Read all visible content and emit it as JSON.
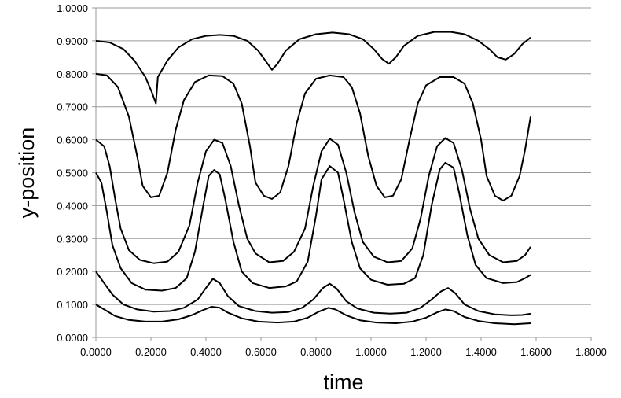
{
  "chart_data": {
    "type": "line",
    "title": "",
    "xlabel": "time",
    "ylabel": "y-position",
    "xlim": [
      0,
      1.8
    ],
    "ylim": [
      0,
      1.0
    ],
    "x_ticks": [
      0,
      0.2,
      0.4,
      0.6,
      0.8,
      1.0,
      1.2,
      1.4,
      1.6,
      1.8
    ],
    "x_tick_labels": [
      "0.0000",
      "0.2000",
      "0.4000",
      "0.6000",
      "0.8000",
      "1.0000",
      "1.2000",
      "1.4000",
      "1.6000",
      "1.8000"
    ],
    "y_ticks": [
      0,
      0.1,
      0.2,
      0.3,
      0.4,
      0.5,
      0.6,
      0.7,
      0.8,
      0.9,
      1.0
    ],
    "y_tick_labels": [
      "0.0000",
      "0.1000",
      "0.2000",
      "0.3000",
      "0.4000",
      "0.5000",
      "0.6000",
      "0.7000",
      "0.8000",
      "0.9000",
      "1.0000"
    ],
    "grid": "horizontal",
    "legend": "none",
    "line_color": "#000000",
    "grid_color": "#9a9a9a",
    "series": [
      {
        "points": [
          [
            0,
            0.9
          ],
          [
            0.05,
            0.895
          ],
          [
            0.1,
            0.875
          ],
          [
            0.14,
            0.84
          ],
          [
            0.18,
            0.79
          ],
          [
            0.205,
            0.74
          ],
          [
            0.218,
            0.71
          ],
          [
            0.225,
            0.79
          ],
          [
            0.26,
            0.84
          ],
          [
            0.3,
            0.88
          ],
          [
            0.35,
            0.905
          ],
          [
            0.4,
            0.915
          ],
          [
            0.45,
            0.918
          ],
          [
            0.5,
            0.915
          ],
          [
            0.55,
            0.9
          ],
          [
            0.59,
            0.87
          ],
          [
            0.62,
            0.835
          ],
          [
            0.64,
            0.812
          ],
          [
            0.66,
            0.83
          ],
          [
            0.69,
            0.87
          ],
          [
            0.74,
            0.905
          ],
          [
            0.8,
            0.92
          ],
          [
            0.86,
            0.925
          ],
          [
            0.92,
            0.92
          ],
          [
            0.97,
            0.905
          ],
          [
            1.01,
            0.875
          ],
          [
            1.04,
            0.845
          ],
          [
            1.065,
            0.83
          ],
          [
            1.09,
            0.85
          ],
          [
            1.12,
            0.885
          ],
          [
            1.17,
            0.915
          ],
          [
            1.23,
            0.927
          ],
          [
            1.29,
            0.927
          ],
          [
            1.34,
            0.92
          ],
          [
            1.39,
            0.9
          ],
          [
            1.43,
            0.875
          ],
          [
            1.46,
            0.85
          ],
          [
            1.49,
            0.843
          ],
          [
            1.52,
            0.86
          ],
          [
            1.55,
            0.89
          ],
          [
            1.58,
            0.91
          ]
        ]
      },
      {
        "points": [
          [
            0,
            0.8
          ],
          [
            0.04,
            0.795
          ],
          [
            0.08,
            0.76
          ],
          [
            0.12,
            0.67
          ],
          [
            0.15,
            0.55
          ],
          [
            0.17,
            0.46
          ],
          [
            0.2,
            0.425
          ],
          [
            0.23,
            0.43
          ],
          [
            0.26,
            0.5
          ],
          [
            0.29,
            0.63
          ],
          [
            0.32,
            0.72
          ],
          [
            0.36,
            0.775
          ],
          [
            0.41,
            0.795
          ],
          [
            0.46,
            0.793
          ],
          [
            0.5,
            0.77
          ],
          [
            0.53,
            0.71
          ],
          [
            0.56,
            0.58
          ],
          [
            0.58,
            0.47
          ],
          [
            0.61,
            0.43
          ],
          [
            0.64,
            0.42
          ],
          [
            0.67,
            0.44
          ],
          [
            0.7,
            0.52
          ],
          [
            0.73,
            0.65
          ],
          [
            0.76,
            0.74
          ],
          [
            0.8,
            0.785
          ],
          [
            0.85,
            0.795
          ],
          [
            0.9,
            0.79
          ],
          [
            0.93,
            0.76
          ],
          [
            0.96,
            0.68
          ],
          [
            0.99,
            0.55
          ],
          [
            1.02,
            0.46
          ],
          [
            1.05,
            0.425
          ],
          [
            1.08,
            0.43
          ],
          [
            1.11,
            0.48
          ],
          [
            1.14,
            0.6
          ],
          [
            1.17,
            0.71
          ],
          [
            1.2,
            0.765
          ],
          [
            1.25,
            0.79
          ],
          [
            1.3,
            0.79
          ],
          [
            1.34,
            0.77
          ],
          [
            1.37,
            0.71
          ],
          [
            1.4,
            0.6
          ],
          [
            1.42,
            0.49
          ],
          [
            1.45,
            0.43
          ],
          [
            1.48,
            0.415
          ],
          [
            1.51,
            0.43
          ],
          [
            1.54,
            0.49
          ],
          [
            1.56,
            0.57
          ],
          [
            1.58,
            0.67
          ]
        ]
      },
      {
        "points": [
          [
            0,
            0.6
          ],
          [
            0.03,
            0.58
          ],
          [
            0.05,
            0.52
          ],
          [
            0.07,
            0.42
          ],
          [
            0.09,
            0.33
          ],
          [
            0.12,
            0.265
          ],
          [
            0.16,
            0.235
          ],
          [
            0.21,
            0.225
          ],
          [
            0.26,
            0.23
          ],
          [
            0.3,
            0.26
          ],
          [
            0.34,
            0.34
          ],
          [
            0.37,
            0.47
          ],
          [
            0.4,
            0.565
          ],
          [
            0.43,
            0.6
          ],
          [
            0.46,
            0.59
          ],
          [
            0.49,
            0.52
          ],
          [
            0.52,
            0.4
          ],
          [
            0.55,
            0.3
          ],
          [
            0.58,
            0.255
          ],
          [
            0.63,
            0.228
          ],
          [
            0.68,
            0.232
          ],
          [
            0.72,
            0.26
          ],
          [
            0.76,
            0.33
          ],
          [
            0.79,
            0.46
          ],
          [
            0.82,
            0.565
          ],
          [
            0.85,
            0.603
          ],
          [
            0.88,
            0.585
          ],
          [
            0.91,
            0.5
          ],
          [
            0.94,
            0.38
          ],
          [
            0.97,
            0.29
          ],
          [
            1.01,
            0.245
          ],
          [
            1.06,
            0.228
          ],
          [
            1.11,
            0.232
          ],
          [
            1.15,
            0.27
          ],
          [
            1.18,
            0.36
          ],
          [
            1.21,
            0.49
          ],
          [
            1.24,
            0.58
          ],
          [
            1.27,
            0.605
          ],
          [
            1.3,
            0.59
          ],
          [
            1.33,
            0.51
          ],
          [
            1.36,
            0.39
          ],
          [
            1.39,
            0.3
          ],
          [
            1.43,
            0.25
          ],
          [
            1.48,
            0.228
          ],
          [
            1.53,
            0.232
          ],
          [
            1.56,
            0.25
          ],
          [
            1.58,
            0.275
          ]
        ]
      },
      {
        "points": [
          [
            0,
            0.5
          ],
          [
            0.02,
            0.47
          ],
          [
            0.04,
            0.38
          ],
          [
            0.06,
            0.28
          ],
          [
            0.09,
            0.21
          ],
          [
            0.13,
            0.165
          ],
          [
            0.18,
            0.145
          ],
          [
            0.24,
            0.142
          ],
          [
            0.29,
            0.15
          ],
          [
            0.33,
            0.18
          ],
          [
            0.36,
            0.26
          ],
          [
            0.39,
            0.4
          ],
          [
            0.41,
            0.49
          ],
          [
            0.43,
            0.508
          ],
          [
            0.45,
            0.495
          ],
          [
            0.47,
            0.42
          ],
          [
            0.5,
            0.29
          ],
          [
            0.53,
            0.2
          ],
          [
            0.57,
            0.165
          ],
          [
            0.63,
            0.15
          ],
          [
            0.69,
            0.155
          ],
          [
            0.73,
            0.17
          ],
          [
            0.77,
            0.23
          ],
          [
            0.8,
            0.37
          ],
          [
            0.82,
            0.48
          ],
          [
            0.85,
            0.52
          ],
          [
            0.88,
            0.5
          ],
          [
            0.9,
            0.42
          ],
          [
            0.93,
            0.29
          ],
          [
            0.96,
            0.21
          ],
          [
            1.0,
            0.175
          ],
          [
            1.06,
            0.16
          ],
          [
            1.12,
            0.163
          ],
          [
            1.16,
            0.18
          ],
          [
            1.19,
            0.25
          ],
          [
            1.22,
            0.4
          ],
          [
            1.25,
            0.51
          ],
          [
            1.27,
            0.53
          ],
          [
            1.3,
            0.515
          ],
          [
            1.32,
            0.44
          ],
          [
            1.35,
            0.31
          ],
          [
            1.38,
            0.22
          ],
          [
            1.42,
            0.18
          ],
          [
            1.48,
            0.165
          ],
          [
            1.53,
            0.168
          ],
          [
            1.56,
            0.18
          ],
          [
            1.58,
            0.19
          ]
        ]
      },
      {
        "points": [
          [
            0,
            0.2
          ],
          [
            0.03,
            0.165
          ],
          [
            0.06,
            0.13
          ],
          [
            0.1,
            0.1
          ],
          [
            0.15,
            0.085
          ],
          [
            0.21,
            0.078
          ],
          [
            0.27,
            0.08
          ],
          [
            0.32,
            0.09
          ],
          [
            0.37,
            0.115
          ],
          [
            0.4,
            0.15
          ],
          [
            0.425,
            0.178
          ],
          [
            0.45,
            0.165
          ],
          [
            0.48,
            0.125
          ],
          [
            0.52,
            0.095
          ],
          [
            0.58,
            0.08
          ],
          [
            0.64,
            0.075
          ],
          [
            0.7,
            0.077
          ],
          [
            0.75,
            0.09
          ],
          [
            0.79,
            0.115
          ],
          [
            0.825,
            0.15
          ],
          [
            0.85,
            0.163
          ],
          [
            0.875,
            0.148
          ],
          [
            0.91,
            0.11
          ],
          [
            0.95,
            0.088
          ],
          [
            1.01,
            0.075
          ],
          [
            1.07,
            0.072
          ],
          [
            1.13,
            0.075
          ],
          [
            1.18,
            0.09
          ],
          [
            1.22,
            0.115
          ],
          [
            1.255,
            0.14
          ],
          [
            1.28,
            0.15
          ],
          [
            1.305,
            0.135
          ],
          [
            1.34,
            0.1
          ],
          [
            1.39,
            0.08
          ],
          [
            1.45,
            0.07
          ],
          [
            1.51,
            0.067
          ],
          [
            1.55,
            0.068
          ],
          [
            1.58,
            0.072
          ]
        ]
      },
      {
        "points": [
          [
            0,
            0.1
          ],
          [
            0.03,
            0.085
          ],
          [
            0.07,
            0.065
          ],
          [
            0.12,
            0.053
          ],
          [
            0.18,
            0.048
          ],
          [
            0.24,
            0.048
          ],
          [
            0.3,
            0.055
          ],
          [
            0.35,
            0.068
          ],
          [
            0.39,
            0.083
          ],
          [
            0.42,
            0.093
          ],
          [
            0.45,
            0.09
          ],
          [
            0.48,
            0.075
          ],
          [
            0.53,
            0.058
          ],
          [
            0.59,
            0.048
          ],
          [
            0.66,
            0.045
          ],
          [
            0.72,
            0.048
          ],
          [
            0.77,
            0.06
          ],
          [
            0.81,
            0.078
          ],
          [
            0.845,
            0.09
          ],
          [
            0.87,
            0.085
          ],
          [
            0.91,
            0.067
          ],
          [
            0.96,
            0.052
          ],
          [
            1.02,
            0.045
          ],
          [
            1.09,
            0.043
          ],
          [
            1.15,
            0.048
          ],
          [
            1.2,
            0.06
          ],
          [
            1.24,
            0.076
          ],
          [
            1.27,
            0.085
          ],
          [
            1.3,
            0.08
          ],
          [
            1.34,
            0.062
          ],
          [
            1.39,
            0.05
          ],
          [
            1.45,
            0.043
          ],
          [
            1.52,
            0.04
          ],
          [
            1.58,
            0.043
          ]
        ]
      }
    ]
  }
}
